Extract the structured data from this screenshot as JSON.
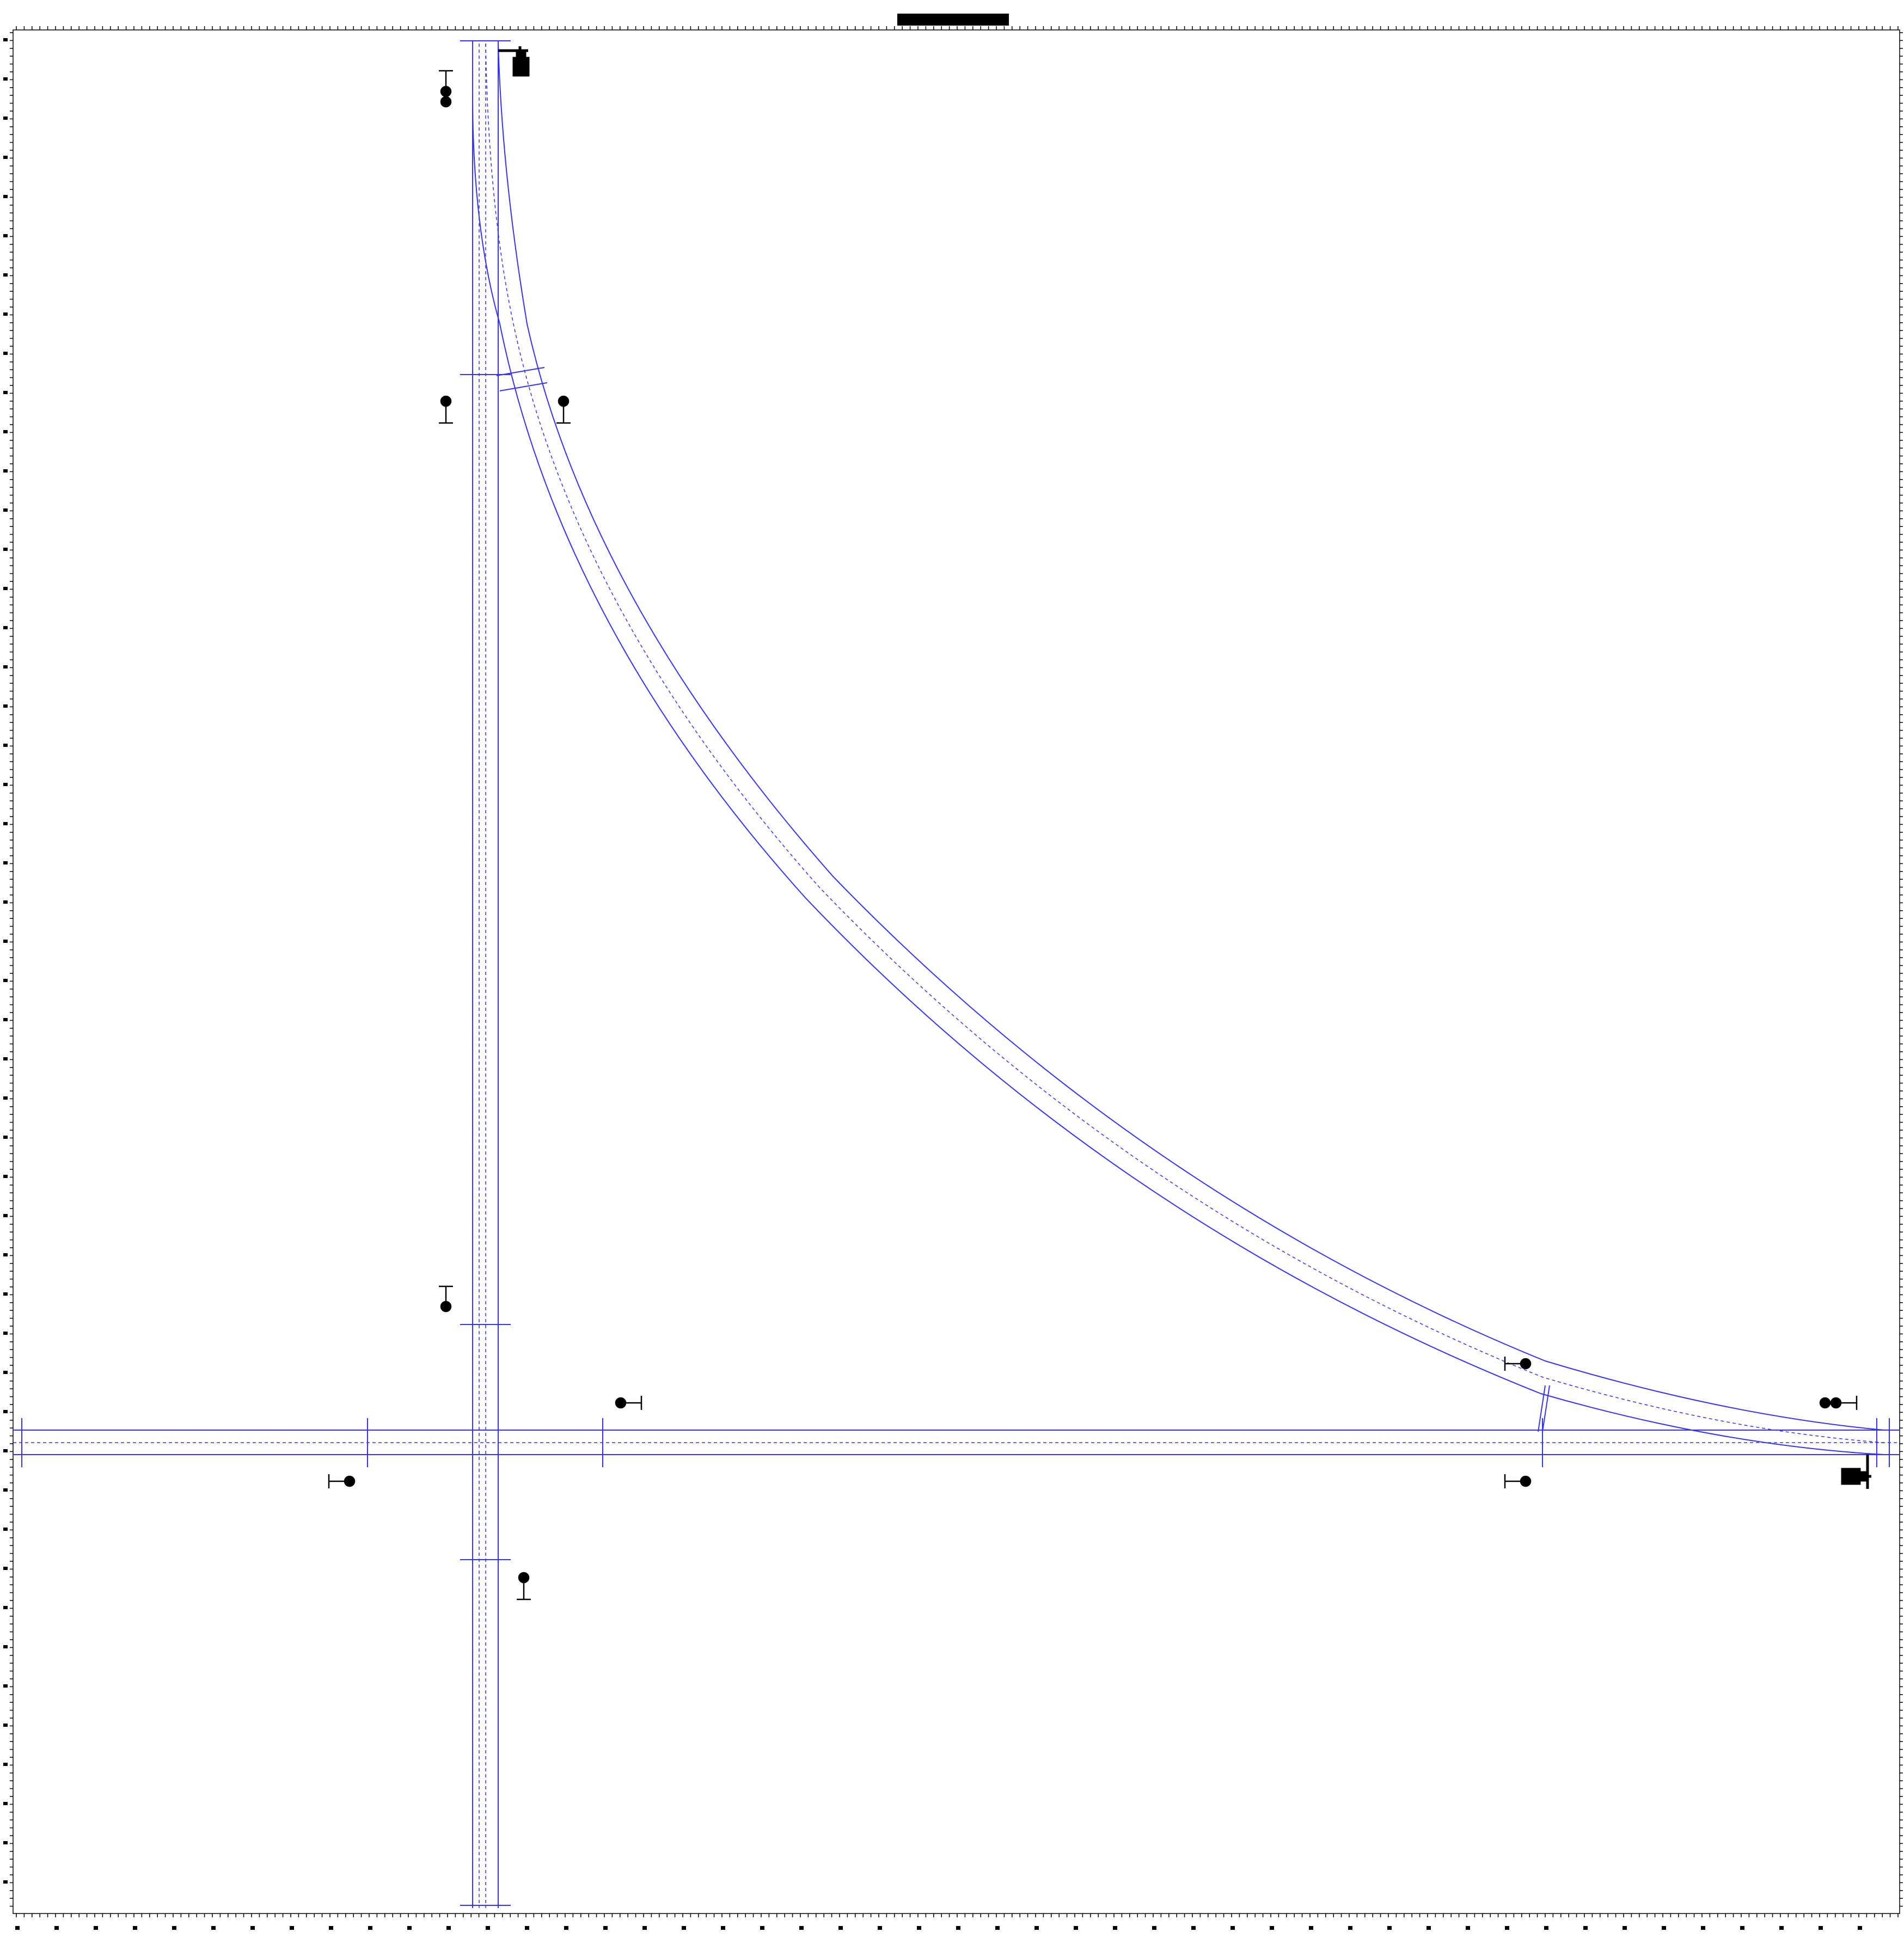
{
  "colors": {
    "background": "#ffffff",
    "track": "#3333ff",
    "marker": "#000000"
  },
  "elements": {
    "top_label_bar": "redacted-label-bar",
    "tracks": [
      "vertical-track",
      "horizontal-track",
      "curved-track"
    ],
    "icons": [
      "signal-icon",
      "buffer-stop-icon",
      "axis-tick-icon"
    ]
  }
}
